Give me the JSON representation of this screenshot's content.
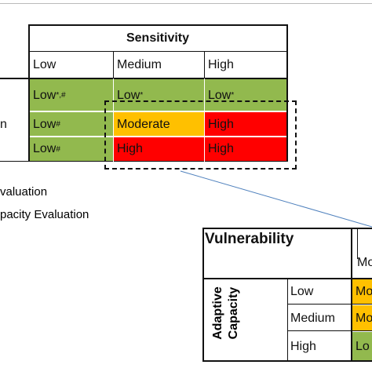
{
  "top_table": {
    "header": "Sensitivity",
    "columns": [
      "Low",
      "Medium",
      "High"
    ],
    "row_labels": [
      "n"
    ],
    "rows": [
      [
        {
          "text": "Low",
          "sup": "*,#"
        },
        {
          "text": "Low",
          "sup": "*"
        },
        {
          "text": "Low",
          "sup": "*"
        }
      ],
      [
        {
          "text": "Low",
          "sup": "#"
        },
        {
          "text": "Moderate",
          "sup": ""
        },
        {
          "text": "High",
          "sup": ""
        }
      ],
      [
        {
          "text": "Low",
          "sup": "#"
        },
        {
          "text": "High",
          "sup": ""
        },
        {
          "text": "High",
          "sup": ""
        }
      ]
    ]
  },
  "notes": [
    "valuation",
    "pacity Evaluation"
  ],
  "bottom_table": {
    "title": "Vulnerability",
    "axis_label": "Adaptive Capacity",
    "header_partial": "Mode",
    "row_labels": [
      "Low",
      "Medium",
      "High"
    ],
    "cells": [
      "Mo",
      "Mo",
      "Lo"
    ]
  }
}
